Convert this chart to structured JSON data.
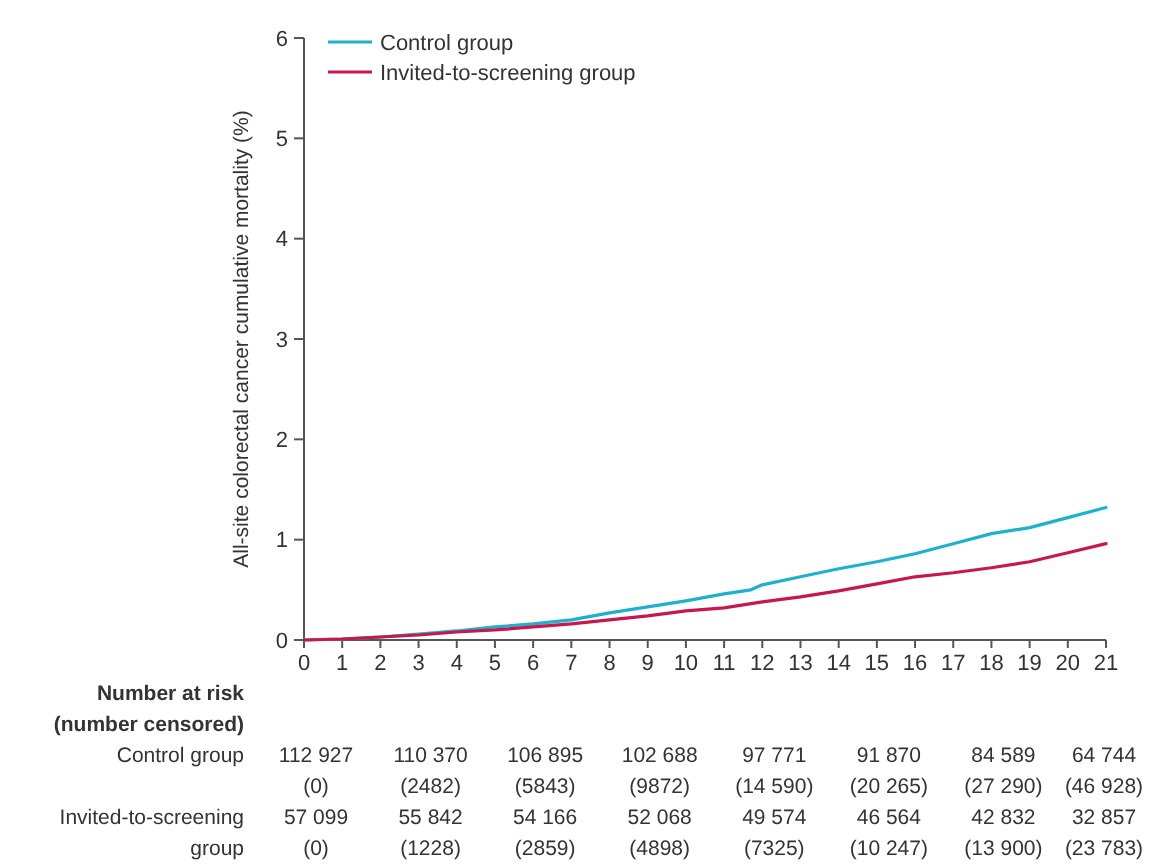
{
  "chart_data": {
    "type": "line",
    "ylabel": "All-site colorectal cancer cumulative mortality (%)",
    "xlim": [
      0,
      21
    ],
    "xticks": [
      0,
      1,
      2,
      3,
      4,
      5,
      6,
      7,
      8,
      9,
      10,
      11,
      12,
      13,
      14,
      15,
      16,
      17,
      18,
      19,
      20,
      21
    ],
    "ylim": [
      0,
      6
    ],
    "yticks": [
      0,
      1,
      2,
      3,
      4,
      5,
      6
    ],
    "grid": false,
    "legend": "top left",
    "marker": "none",
    "line_style": "solid",
    "series": [
      {
        "name": "Control group",
        "color": "#1fb0cc",
        "x": [
          0,
          1,
          2,
          3,
          4,
          5,
          6,
          7,
          8,
          9,
          10,
          11,
          11.7,
          12,
          13,
          14,
          15,
          16,
          17,
          18,
          19,
          20,
          21
        ],
        "values": [
          0,
          0.01,
          0.03,
          0.06,
          0.09,
          0.13,
          0.16,
          0.2,
          0.27,
          0.33,
          0.39,
          0.46,
          0.5,
          0.55,
          0.63,
          0.71,
          0.78,
          0.86,
          0.96,
          1.06,
          1.12,
          1.22,
          1.32
        ]
      },
      {
        "name": "Invited-to-screening group",
        "color": "#c8174e",
        "x": [
          0,
          1,
          2,
          3,
          4,
          5,
          6,
          7,
          8,
          9,
          10,
          11,
          12,
          13,
          14,
          15,
          16,
          17,
          18,
          19,
          20,
          21
        ],
        "values": [
          0,
          0.01,
          0.03,
          0.05,
          0.08,
          0.1,
          0.13,
          0.16,
          0.2,
          0.24,
          0.29,
          0.32,
          0.38,
          0.43,
          0.49,
          0.56,
          0.63,
          0.67,
          0.72,
          0.78,
          0.87,
          0.96
        ]
      }
    ],
    "annotations": [
      "Number at risk",
      "(number censored)",
      "Control group",
      "112 927",
      "110 370",
      "106 895",
      "102 688",
      "97 771",
      "91 870",
      "84 589",
      "64 744",
      "(0)",
      "(2482)",
      "(5843)",
      "(9872)",
      "(14 590)",
      "(20 265)",
      "(27 290)",
      "(46 928)",
      "Invited-to-screening",
      "57 099",
      "55 842",
      "54 166",
      "52 068",
      "49 574",
      "46 564",
      "42 832",
      "32 857",
      "group",
      "(0)",
      "(1228)",
      "(2859)",
      "(4898)",
      "(7325)",
      "(10 247)",
      "(13 900)",
      "(23 783)"
    ]
  }
}
